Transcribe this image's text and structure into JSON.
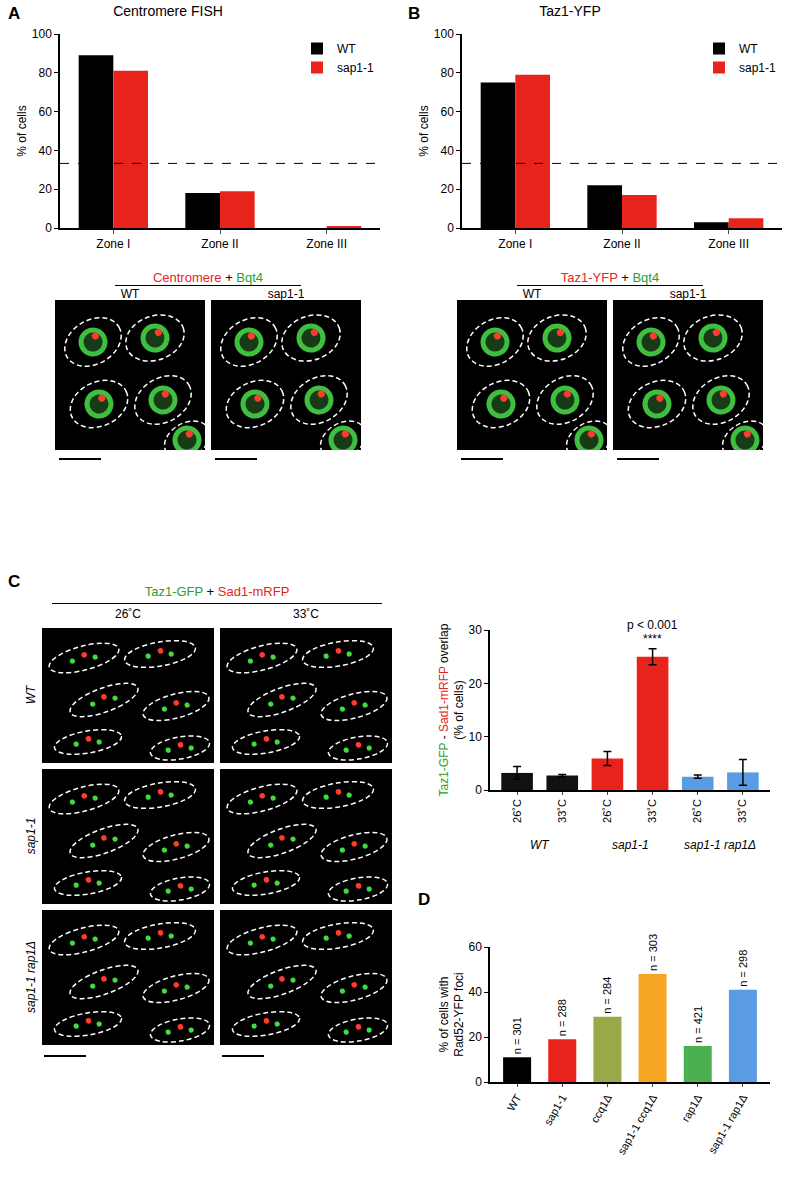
{
  "chart_data": [
    {
      "type": "bar",
      "panel": "A",
      "title": "Centromere FISH",
      "categories": [
        "Zone I",
        "Zone II",
        "Zone III"
      ],
      "series": [
        {
          "name": "WT",
          "color": "#000000",
          "values": [
            89,
            18,
            0
          ]
        },
        {
          "name": "sap1-1",
          "color": "#e8231c",
          "values": [
            81,
            19,
            1
          ]
        }
      ],
      "y_label": [
        "% of cells"
      ],
      "ylim": [
        0,
        100
      ],
      "yticks": [
        0,
        20,
        40,
        60,
        80,
        100
      ],
      "grid": false,
      "legend": "upper right",
      "reference_lines": [
        {
          "value": 33.3,
          "line_style": "dashed"
        }
      ]
    },
    {
      "type": "bar",
      "panel": "B",
      "title": "Taz1-YFP",
      "categories": [
        "Zone I",
        "Zone II",
        "Zone III"
      ],
      "series": [
        {
          "name": "WT",
          "color": "#000000",
          "values": [
            75,
            22,
            3
          ]
        },
        {
          "name": "sap1-1",
          "color": "#e8231c",
          "values": [
            79,
            17,
            5
          ]
        }
      ],
      "y_label": [
        "% of cells"
      ],
      "ylim": [
        0,
        100
      ],
      "yticks": [
        0,
        20,
        40,
        60,
        80,
        100
      ],
      "grid": false,
      "legend": "upper right",
      "reference_lines": [
        {
          "value": 33.3,
          "line_style": "dashed"
        }
      ]
    },
    {
      "type": "bar",
      "categories": [
        "26˚C",
        "33˚C",
        "26˚C",
        "33˚C",
        "26˚C",
        "33˚C"
      ],
      "group_labels": [
        "WT",
        "sap1-1",
        "sap1-1 rap1Δ"
      ],
      "values": [
        3.2,
        2.7,
        5.9,
        25,
        2.5,
        3.3
      ],
      "errors": [
        1.2,
        0.2,
        1.3,
        1.5,
        0.3,
        2.4
      ],
      "colors": [
        "#111111",
        "#111111",
        "#e8231c",
        "#e8231c",
        "#5a9be6",
        "#5a9be6"
      ],
      "y_label": [
        [
          {
            "text": "Taz1-GFP",
            "color": "#2ca02c"
          },
          {
            "text": " - ",
            "color": "#000000"
          },
          {
            "text": "Sad1-mRFP",
            "color": "#e8231c"
          },
          {
            "text": " overlap",
            "color": "#000000"
          }
        ],
        [
          {
            "text": "(% of cells)",
            "color": "#000000"
          }
        ]
      ],
      "ylim": [
        0,
        30
      ],
      "yticks": [
        0,
        10,
        20,
        30
      ],
      "grid": false,
      "annotations": [
        {
          "text": "p < 0.001",
          "x": 3,
          "y": 29.3
        },
        {
          "text": "****",
          "x": 3,
          "y": 26.6
        }
      ]
    },
    {
      "type": "bar",
      "panel": "D",
      "categories": [
        "WT",
        "sap1-1",
        "ccq1Δ",
        "sap1-1 ccq1Δ",
        "rap1Δ",
        "sap1-1 rap1Δ"
      ],
      "values": [
        11,
        19,
        29,
        48,
        16,
        41
      ],
      "bar_labels": [
        "n = 301",
        "n = 288",
        "n = 284",
        "n = 303",
        "n = 421",
        "n = 298"
      ],
      "colors": [
        "#000000",
        "#e8231c",
        "#9aa84a",
        "#f5a623",
        "#4caf50",
        "#5a9be6"
      ],
      "y_label": [
        "% of cells with",
        "Rad52-YFP foci"
      ],
      "ylim": [
        0,
        60
      ],
      "yticks": [
        0,
        20,
        40,
        60
      ],
      "grid": false
    }
  ],
  "figure": {
    "micrographs": [
      {
        "title": [
          {
            "text": "Centromere",
            "color": "#e8231c"
          },
          {
            "text": " + ",
            "color": "#000000"
          },
          {
            "text": "Bqt4",
            "color": "#2ca02c"
          }
        ],
        "columns": [
          "WT",
          "sap1-1"
        ]
      },
      {
        "title": [
          {
            "text": "Taz1-YFP",
            "color": "#e8231c"
          },
          {
            "text": " + ",
            "color": "#000000"
          },
          {
            "text": "Bqt4",
            "color": "#2ca02c"
          }
        ],
        "columns": [
          "WT",
          "sap1-1"
        ]
      },
      {
        "panel": "C",
        "title": [
          {
            "text": "Taz1-GFP",
            "color": "#2ca02c"
          },
          {
            "text": " + ",
            "color": "#000000"
          },
          {
            "text": "Sad1-mRFP",
            "color": "#e8231c"
          }
        ],
        "columns": [
          "26˚C",
          "33˚C"
        ],
        "rows": [
          "WT",
          "sap1-1",
          "sap1-1 rap1Δ"
        ]
      }
    ]
  }
}
